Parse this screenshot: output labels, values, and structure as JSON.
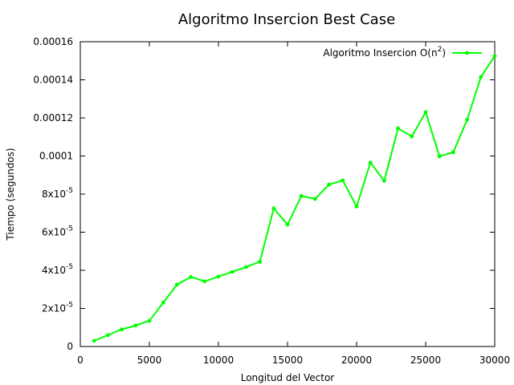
{
  "chart_data": {
    "type": "line",
    "title": "Algoritmo Insercion Best Case",
    "xlabel": "Longitud del Vector",
    "ylabel": "Tiempo (segundos)",
    "xlim": [
      0,
      30000
    ],
    "ylim": [
      0,
      0.00016
    ],
    "grid": false,
    "legend_position": "top-right",
    "x_ticks": [
      {
        "value": 0,
        "label": "0"
      },
      {
        "value": 5000,
        "label": "5000"
      },
      {
        "value": 10000,
        "label": "10000"
      },
      {
        "value": 15000,
        "label": "15000"
      },
      {
        "value": 20000,
        "label": "20000"
      },
      {
        "value": 25000,
        "label": "25000"
      },
      {
        "value": 30000,
        "label": "30000"
      }
    ],
    "y_ticks": [
      {
        "value": 0,
        "label": "0",
        "sup": ""
      },
      {
        "value": 2e-05,
        "label": "2x10",
        "sup": "-5"
      },
      {
        "value": 4e-05,
        "label": "4x10",
        "sup": "-5"
      },
      {
        "value": 6e-05,
        "label": "6x10",
        "sup": "-5"
      },
      {
        "value": 8e-05,
        "label": "8x10",
        "sup": "-5"
      },
      {
        "value": 0.0001,
        "label": "0.0001",
        "sup": ""
      },
      {
        "value": 0.00012,
        "label": "0.00012",
        "sup": ""
      },
      {
        "value": 0.00014,
        "label": "0.00014",
        "sup": ""
      },
      {
        "value": 0.00016,
        "label": "0.00016",
        "sup": ""
      }
    ],
    "series": [
      {
        "name": "Algoritmo Insercion O(n",
        "name_sup": "2",
        "name_suffix": ")",
        "color": "#00ff00",
        "x": [
          1000,
          2000,
          3000,
          4000,
          5000,
          6000,
          7000,
          8000,
          9000,
          10000,
          11000,
          12000,
          13000,
          14000,
          15000,
          16000,
          17000,
          18000,
          19000,
          20000,
          21000,
          22000,
          23000,
          24000,
          25000,
          26000,
          27000,
          28000,
          29000,
          30000
        ],
        "y": [
          3e-06,
          6e-06,
          9e-06,
          1.1e-05,
          1.35e-05,
          2.3e-05,
          3.25e-05,
          3.65e-05,
          3.42e-05,
          3.67e-05,
          3.92e-05,
          4.17e-05,
          4.45e-05,
          7.25e-05,
          6.4e-05,
          7.9e-05,
          7.75e-05,
          8.5e-05,
          8.72e-05,
          7.35e-05,
          9.65e-05,
          8.7e-05,
          0.0001145,
          0.0001103,
          0.000123,
          9.98e-05,
          0.000102,
          0.000119,
          0.0001415,
          0.0001525
        ]
      }
    ]
  }
}
